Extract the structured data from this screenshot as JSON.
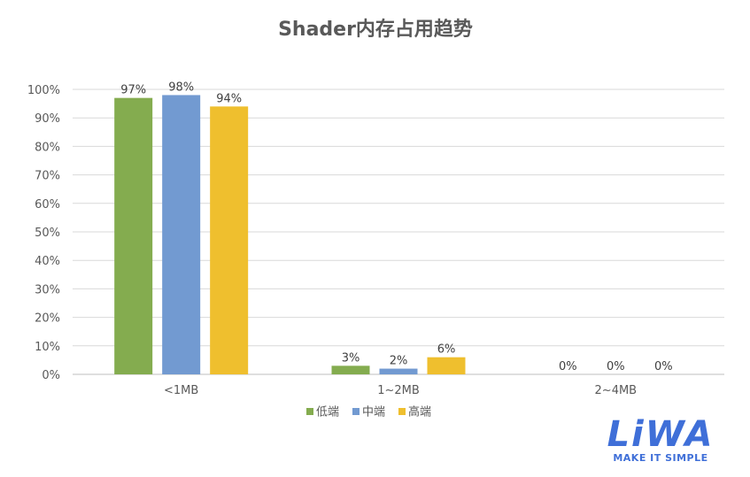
{
  "chart_data": {
    "type": "bar",
    "title": "Shader内存占用趋势",
    "categories": [
      "<1MB",
      "1~2MB",
      "2~4MB"
    ],
    "series": [
      {
        "name": "低端",
        "values": [
          97,
          3,
          0
        ],
        "color": "#84ac4f"
      },
      {
        "name": "中端",
        "values": [
          98,
          2,
          0
        ],
        "color": "#729ad1"
      },
      {
        "name": "高端",
        "values": [
          94,
          6,
          0
        ],
        "color": "#efbf2e"
      }
    ],
    "value_suffix": "%",
    "ylim": [
      0,
      100
    ],
    "yticks": [
      0,
      10,
      20,
      30,
      40,
      50,
      60,
      70,
      80,
      90,
      100
    ],
    "grid": true,
    "legend_position": "bottom"
  },
  "logo": {
    "name": "LiWA",
    "tagline": "MAKE IT SIMPLE",
    "color": "#3f6fd8"
  }
}
